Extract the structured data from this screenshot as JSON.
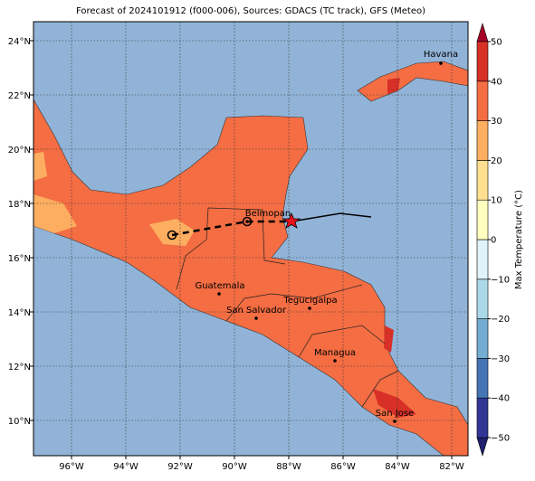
{
  "header": {
    "title": "Forecast of 2024101912 (f000-006), Sources: GDACS (TC track), GFS (Meteo)"
  },
  "map": {
    "lonlim": [
      -97.4,
      -81.4
    ],
    "latlim": [
      8.7,
      24.7
    ],
    "lonticks": [
      {
        "value": -96,
        "label": "96°W"
      },
      {
        "value": -94,
        "label": "94°W"
      },
      {
        "value": -92,
        "label": "92°W"
      },
      {
        "value": -90,
        "label": "90°W"
      },
      {
        "value": -88,
        "label": "88°W"
      },
      {
        "value": -86,
        "label": "86°W"
      },
      {
        "value": -84,
        "label": "84°W"
      },
      {
        "value": -82,
        "label": "82°W"
      }
    ],
    "latticks": [
      {
        "value": 10,
        "label": "10°N"
      },
      {
        "value": 12,
        "label": "12°N"
      },
      {
        "value": 14,
        "label": "14°N"
      },
      {
        "value": 16,
        "label": "16°N"
      },
      {
        "value": 18,
        "label": "18°N"
      },
      {
        "value": 20,
        "label": "20°N"
      },
      {
        "value": 22,
        "label": "22°N"
      },
      {
        "value": 24,
        "label": "24°N"
      }
    ],
    "cities": [
      "Havana",
      "Belmopan",
      "Guatemala",
      "San Salvador",
      "Tegucigalpa",
      "Managua",
      "San Jose"
    ]
  },
  "colorbar": {
    "label": "Max Temperature (°C)",
    "ticks": [
      {
        "value": -50,
        "label": "−50"
      },
      {
        "value": -40,
        "label": "−40"
      },
      {
        "value": -30,
        "label": "−30"
      },
      {
        "value": -20,
        "label": "−20"
      },
      {
        "value": -10,
        "label": "−10"
      },
      0,
      10,
      20,
      30,
      40,
      50
    ],
    "colors": [
      "#313695",
      "#4575b4",
      "#74add1",
      "#abd9e9",
      "#e0f3f8",
      "#ffffbf",
      "#fee090",
      "#fdae61",
      "#f46d43",
      "#d73027"
    ]
  }
}
